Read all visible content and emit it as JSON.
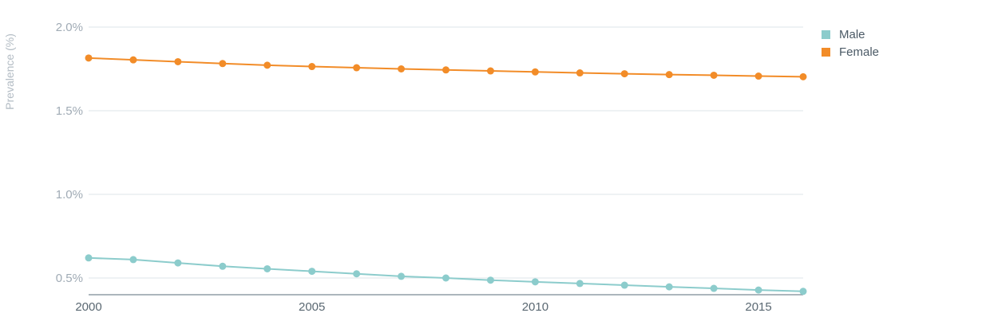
{
  "chart_data": {
    "type": "line",
    "title": "",
    "xlabel": "",
    "ylabel": "Prevalence (%)",
    "x": [
      2000,
      2001,
      2002,
      2003,
      2004,
      2005,
      2006,
      2007,
      2008,
      2009,
      2010,
      2011,
      2012,
      2013,
      2014,
      2015,
      2016
    ],
    "xlim": [
      2000,
      2016
    ],
    "ylim": [
      0.4,
      2.0
    ],
    "x_ticks": [
      2000,
      2005,
      2010,
      2015
    ],
    "x_tick_labels": [
      "2000",
      "2005",
      "2010",
      "2015"
    ],
    "y_ticks": [
      0.5,
      1.0,
      1.5,
      2.0
    ],
    "y_tick_labels": [
      "0.5%",
      "1.0%",
      "1.5%",
      "2.0%"
    ],
    "grid": true,
    "legend_position": "top-right",
    "series": [
      {
        "name": "Male",
        "color": "#8ccccc",
        "values": [
          0.62,
          0.61,
          0.59,
          0.57,
          0.555,
          0.54,
          0.525,
          0.51,
          0.5,
          0.487,
          0.477,
          0.467,
          0.457,
          0.447,
          0.438,
          0.428,
          0.42
        ]
      },
      {
        "name": "Female",
        "color": "#f28c28",
        "values": [
          1.815,
          1.804,
          1.793,
          1.782,
          1.772,
          1.764,
          1.757,
          1.75,
          1.744,
          1.738,
          1.732,
          1.726,
          1.721,
          1.716,
          1.712,
          1.707,
          1.703
        ]
      }
    ]
  }
}
